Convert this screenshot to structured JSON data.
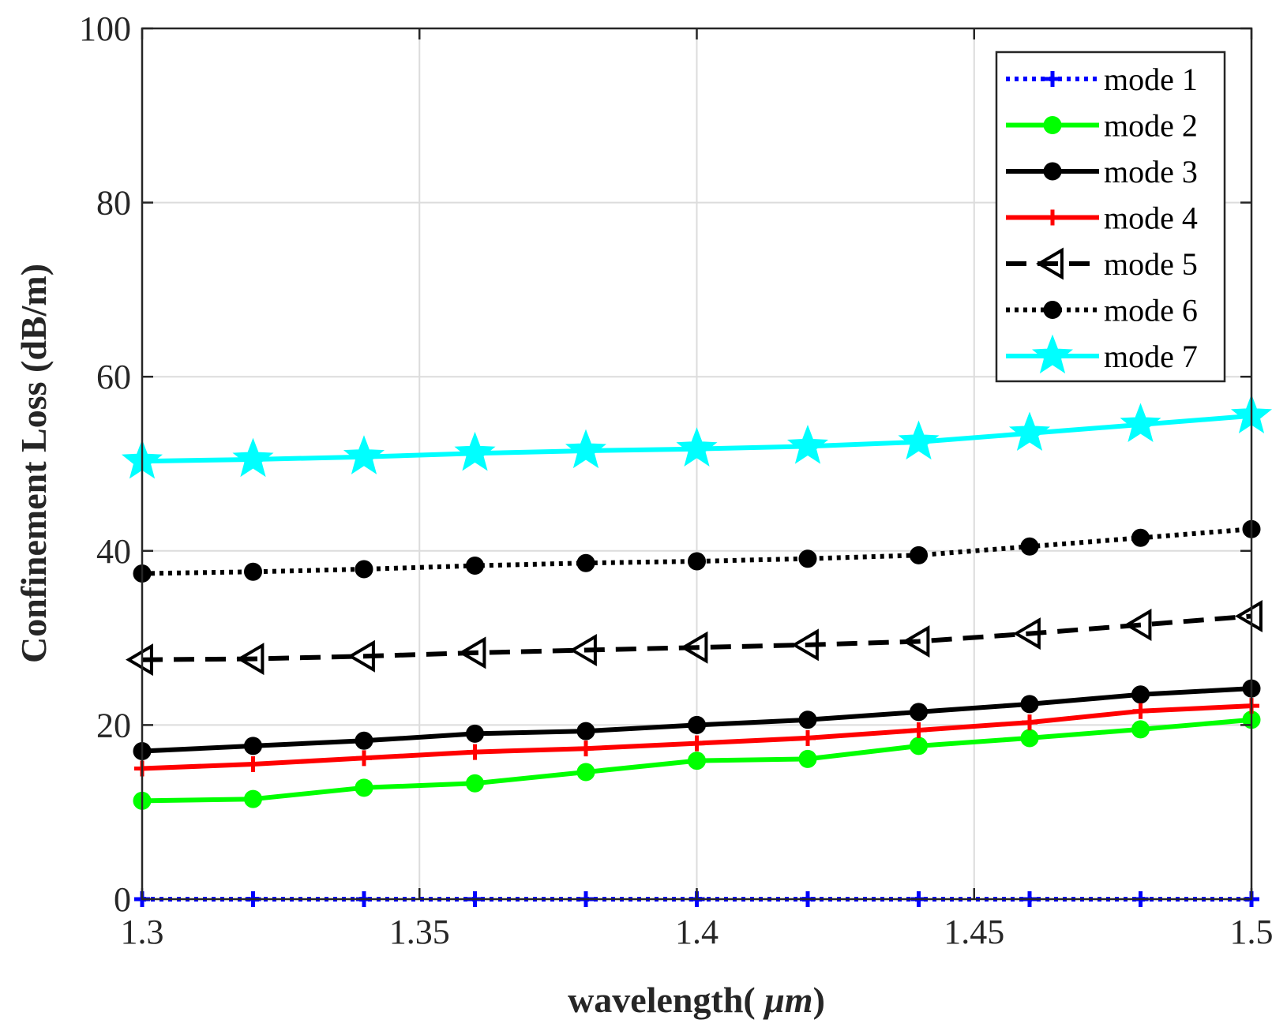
{
  "chart_data": {
    "type": "line",
    "title": "",
    "xlabel": "wavelength( μm)",
    "xlabel_prefix": "wavelength(",
    "xlabel_unit": " μm",
    "xlabel_suffix": ")",
    "ylabel": "Confinement Loss (dB/m)",
    "xlim": [
      1.3,
      1.5
    ],
    "ylim": [
      0,
      100
    ],
    "grid": true,
    "legend_position": "top-right",
    "x_ticks": [
      {
        "value": 1.3,
        "label": "1.3"
      },
      {
        "value": 1.35,
        "label": "1.35"
      },
      {
        "value": 1.4,
        "label": "1.4"
      },
      {
        "value": 1.45,
        "label": "1.45"
      },
      {
        "value": 1.5,
        "label": "1.5"
      }
    ],
    "y_ticks": [
      {
        "value": 0,
        "label": "0"
      },
      {
        "value": 20,
        "label": "20"
      },
      {
        "value": 40,
        "label": "40"
      },
      {
        "value": 60,
        "label": "60"
      },
      {
        "value": 80,
        "label": "80"
      },
      {
        "value": 100,
        "label": "100"
      }
    ],
    "x": [
      1.3,
      1.32,
      1.34,
      1.36,
      1.38,
      1.4,
      1.42,
      1.44,
      1.46,
      1.48,
      1.5
    ],
    "series": [
      {
        "name": "mode 1",
        "color": "#0000ff",
        "dash": "dotted",
        "marker": "plus",
        "values": [
          0,
          0,
          0,
          0,
          0,
          0,
          0,
          0,
          0,
          0,
          0
        ]
      },
      {
        "name": "mode 2",
        "color": "#00ff00",
        "dash": "solid",
        "marker": "circle",
        "values": [
          11.3,
          11.5,
          12.8,
          13.3,
          14.6,
          15.9,
          16.1,
          17.6,
          18.5,
          19.5,
          20.6
        ]
      },
      {
        "name": "mode 3",
        "color": "#000000",
        "dash": "solid",
        "marker": "circle",
        "values": [
          17.0,
          17.6,
          18.2,
          19.0,
          19.3,
          20.0,
          20.6,
          21.5,
          22.4,
          23.5,
          24.2
        ]
      },
      {
        "name": "mode 4",
        "color": "#ff0000",
        "dash": "solid",
        "marker": "plus",
        "values": [
          15.0,
          15.5,
          16.2,
          16.9,
          17.3,
          17.9,
          18.5,
          19.4,
          20.3,
          21.6,
          22.2
        ]
      },
      {
        "name": "mode 5",
        "color": "#000000",
        "dash": "dashed",
        "marker": "triangle-left",
        "values": [
          27.5,
          27.6,
          27.9,
          28.3,
          28.6,
          28.9,
          29.2,
          29.6,
          30.5,
          31.5,
          32.5
        ]
      },
      {
        "name": "mode 6",
        "color": "#000000",
        "dash": "dotted",
        "marker": "circle",
        "values": [
          37.4,
          37.6,
          37.9,
          38.3,
          38.6,
          38.8,
          39.1,
          39.5,
          40.5,
          41.5,
          42.5
        ]
      },
      {
        "name": "mode 7",
        "color": "#00ffff",
        "dash": "solid",
        "marker": "star",
        "values": [
          50.3,
          50.5,
          50.8,
          51.2,
          51.5,
          51.7,
          52.0,
          52.5,
          53.5,
          54.5,
          55.5
        ]
      }
    ]
  }
}
